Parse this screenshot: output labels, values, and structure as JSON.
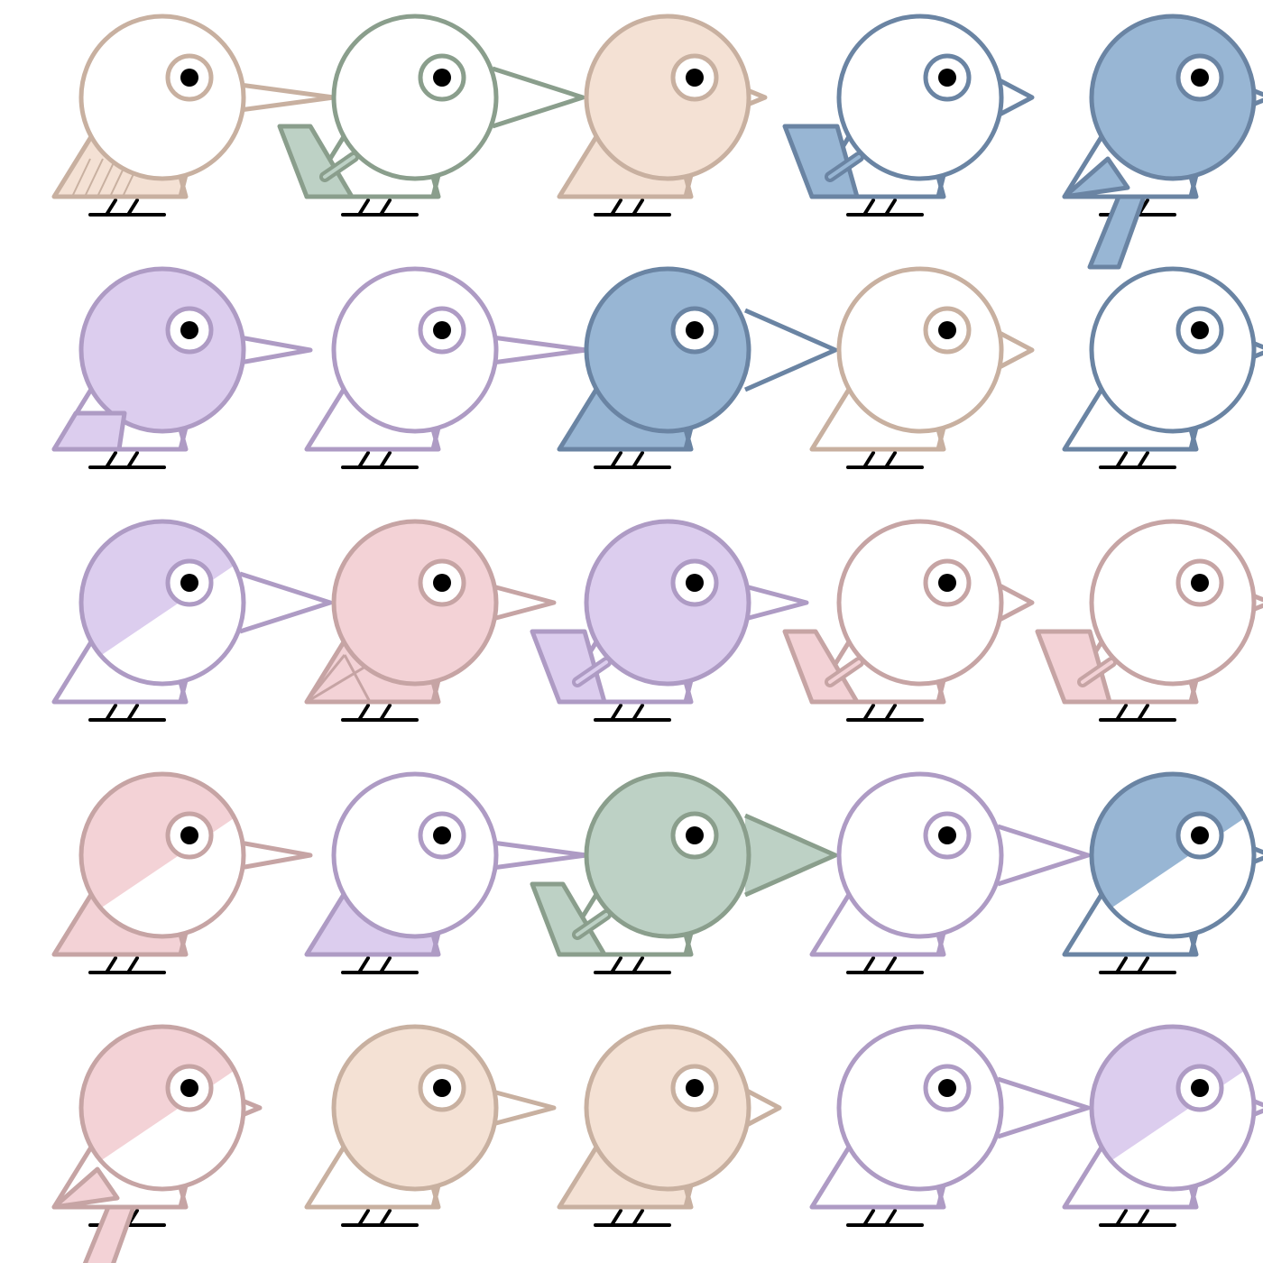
{
  "scene": "bird-pattern",
  "palette": {
    "tan": {
      "stroke": "#c8b0a0",
      "fill": "#f4e1d4",
      "wing": "#f4e1d4"
    },
    "sage": {
      "stroke": "#8a9e8c",
      "fill": "#bdd1c5",
      "wing": "#bdd1c5"
    },
    "blue": {
      "stroke": "#6a84a3",
      "fill": "#98b6d4",
      "wing": "#98b6d4"
    },
    "purple": {
      "stroke": "#ae9bc4",
      "fill": "#dccdee",
      "wing": "#dccdee"
    },
    "rose": {
      "stroke": "#c6a4a4",
      "fill": "#f3d2d6",
      "wing": "#f3d2d6"
    },
    "feet": "#000000",
    "eye": "#000000"
  },
  "rows": [
    [
      {
        "color": "tan",
        "body": "none",
        "beak": "long-thin",
        "wing": "hatched"
      },
      {
        "color": "sage",
        "body": "none",
        "beak": "long",
        "wing": "raised"
      },
      {
        "color": "tan",
        "body": "full",
        "beak": "tiny",
        "wing": "plain"
      },
      {
        "color": "blue",
        "body": "none",
        "beak": "small",
        "wing": "raised-wide"
      },
      {
        "color": "blue",
        "body": "full",
        "beak": "tiny",
        "wing": "down"
      }
    ],
    [
      {
        "color": "purple",
        "body": "full",
        "beak": "thin",
        "wing": "box"
      },
      {
        "color": "purple",
        "body": "none",
        "beak": "long-thin",
        "wing": "none"
      },
      {
        "color": "blue",
        "body": "full",
        "beak": "big",
        "wing": "plain"
      },
      {
        "color": "tan",
        "body": "none",
        "beak": "small",
        "wing": "none"
      },
      {
        "color": "blue",
        "body": "none",
        "beak": "tiny",
        "wing": "none"
      }
    ],
    [
      {
        "color": "purple",
        "body": "half",
        "beak": "long",
        "wing": "none"
      },
      {
        "color": "rose",
        "body": "full",
        "beak": "medium",
        "wing": "lines"
      },
      {
        "color": "purple",
        "body": "full",
        "beak": "medium",
        "wing": "raised-wide"
      },
      {
        "color": "rose",
        "body": "none",
        "beak": "small",
        "wing": "raised"
      },
      {
        "color": "rose",
        "body": "none",
        "beak": "tiny",
        "wing": "raised-wide"
      }
    ],
    [
      {
        "color": "rose",
        "body": "half",
        "beak": "thin",
        "wing": "plain"
      },
      {
        "color": "purple",
        "body": "none",
        "beak": "long-thin",
        "wing": "plain"
      },
      {
        "color": "sage",
        "body": "full",
        "beak": "big",
        "wing": "raised"
      },
      {
        "color": "purple",
        "body": "none",
        "beak": "long",
        "wing": "none"
      },
      {
        "color": "blue",
        "body": "half",
        "beak": "tiny",
        "wing": "none"
      }
    ],
    [
      {
        "color": "rose",
        "body": "half",
        "beak": "tiny",
        "wing": "down"
      },
      {
        "color": "tan",
        "body": "full",
        "beak": "medium",
        "wing": "none"
      },
      {
        "color": "tan",
        "body": "full",
        "beak": "small",
        "wing": "plain"
      },
      {
        "color": "purple",
        "body": "none",
        "beak": "long",
        "wing": "none"
      },
      {
        "color": "purple",
        "body": "half",
        "beak": "tiny",
        "wing": "none"
      }
    ]
  ]
}
